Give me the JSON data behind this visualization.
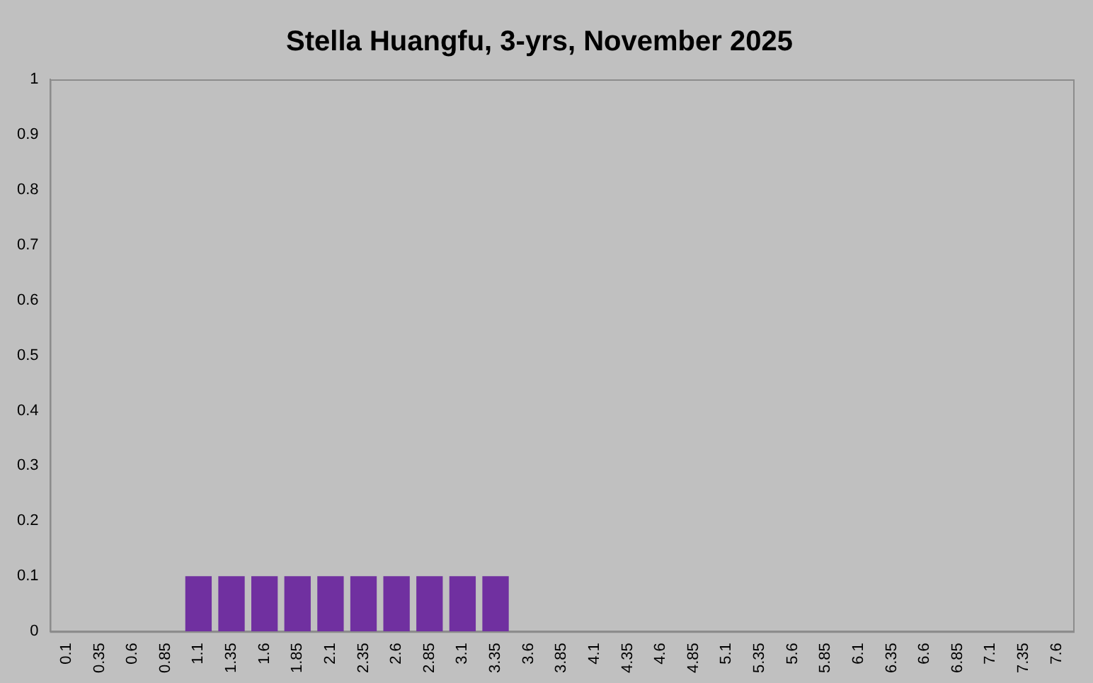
{
  "chart_data": {
    "type": "bar",
    "title": "Stella Huangfu, 3-yrs, November 2025",
    "categories": [
      "0.1",
      "0.35",
      "0.6",
      "0.85",
      "1.1",
      "1.35",
      "1.6",
      "1.85",
      "2.1",
      "2.35",
      "2.6",
      "2.85",
      "3.1",
      "3.35",
      "3.6",
      "3.85",
      "4.1",
      "4.35",
      "4.6",
      "4.85",
      "5.1",
      "5.35",
      "5.6",
      "5.85",
      "6.1",
      "6.35",
      "6.6",
      "6.85",
      "7.1",
      "7.35",
      "7.6"
    ],
    "values": [
      0,
      0,
      0,
      0,
      0.1,
      0.1,
      0.1,
      0.1,
      0.1,
      0.1,
      0.1,
      0.1,
      0.1,
      0.1,
      0,
      0,
      0,
      0,
      0,
      0,
      0,
      0,
      0,
      0,
      0,
      0,
      0,
      0,
      0,
      0,
      0
    ],
    "color": "#7030a0",
    "ylim": [
      0,
      1
    ],
    "yticks": [
      0,
      0.1,
      0.2,
      0.3,
      0.4,
      0.5,
      0.6,
      0.7,
      0.8,
      0.9,
      1
    ],
    "grid": false,
    "legend": false
  }
}
